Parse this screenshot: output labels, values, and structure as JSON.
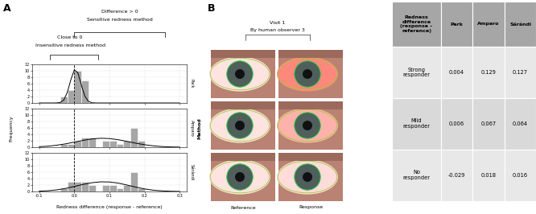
{
  "panel_labels": [
    "A",
    "B"
  ],
  "panel_a": {
    "y_label": "Frequency",
    "x_label": "Redness difference (response - reference)",
    "facet_title": "Method",
    "brackets": [
      {
        "label": "Difference > 0",
        "sublabel": "Sensitive redness method"
      },
      {
        "label": "Close to 0",
        "sublabel": "Insensitive redness method"
      }
    ]
  },
  "chart_data": [
    {
      "type": "histogram",
      "title": "Park",
      "color": "#a6a6a6",
      "grid": true,
      "tick_labels": "y",
      "bins": [
        -0.04,
        -0.02,
        0.0,
        0.02,
        0.04
      ],
      "counts": [
        2,
        4,
        10,
        7
      ],
      "fit_curve": {
        "x": [
          -0.1,
          -0.08,
          -0.06,
          -0.05,
          -0.04,
          -0.03,
          -0.02,
          -0.01,
          0.0,
          0.01,
          0.02,
          0.03,
          0.04,
          0.05,
          0.06,
          0.08,
          0.1,
          0.2,
          0.3
        ],
        "values": [
          0,
          0,
          0,
          0.02,
          0.17,
          0.93,
          3.3,
          7.2,
          10.3,
          9.4,
          5.6,
          2.1,
          0.5,
          0.08,
          0,
          0,
          0,
          0,
          0
        ]
      },
      "reference_line": 0.0,
      "xlim": [
        -0.12,
        0.32
      ],
      "xticks": [
        -0.1,
        0.0,
        0.1,
        0.2,
        0.3
      ],
      "ylim": [
        0,
        12
      ],
      "yticks": [
        0,
        2,
        4,
        6,
        8,
        10,
        12
      ]
    },
    {
      "type": "histogram",
      "title": "Amparo",
      "color": "#a6a6a6",
      "grid": true,
      "tick_labels": "y",
      "bins": [
        -0.04,
        -0.02,
        0.0,
        0.02,
        0.04,
        0.06,
        0.08,
        0.1,
        0.12,
        0.14,
        0.16,
        0.18,
        0.2
      ],
      "counts": [
        1,
        1,
        2,
        3,
        3,
        0,
        2,
        2,
        1,
        2,
        6,
        2
      ],
      "fit_curve": {
        "x": [
          -0.1,
          -0.075,
          -0.05,
          -0.025,
          0.0,
          0.025,
          0.05,
          0.075,
          0.1,
          0.125,
          0.15,
          0.175,
          0.2,
          0.225,
          0.25,
          0.275,
          0.3
        ],
        "values": [
          0.16,
          0.33,
          0.63,
          1.05,
          1.58,
          2.14,
          2.58,
          2.79,
          2.7,
          2.34,
          1.81,
          1.25,
          0.78,
          0.43,
          0.21,
          0.09,
          0.04
        ]
      },
      "reference_line": 0.0,
      "xlim": [
        -0.12,
        0.32
      ],
      "xticks": [
        -0.1,
        0.0,
        0.1,
        0.2,
        0.3
      ],
      "ylim": [
        0,
        12
      ],
      "yticks": [
        0,
        2,
        4,
        6,
        8,
        10,
        12
      ]
    },
    {
      "type": "histogram",
      "title": "Sárándi",
      "color": "#a6a6a6",
      "grid": true,
      "bins": [
        -0.04,
        -0.02,
        0.0,
        0.02,
        0.04,
        0.06,
        0.08,
        0.1,
        0.12,
        0.14,
        0.16,
        0.18,
        0.2
      ],
      "counts": [
        1,
        3,
        3,
        3,
        2,
        0,
        2,
        2,
        1,
        2,
        6,
        1
      ],
      "fit_curve": {
        "x": [
          -0.1,
          -0.075,
          -0.05,
          -0.025,
          0.0,
          0.025,
          0.05,
          0.075,
          0.1,
          0.125,
          0.15,
          0.175,
          0.2,
          0.225,
          0.25,
          0.275,
          0.3
        ],
        "values": [
          0.1,
          0.22,
          0.5,
          0.95,
          1.55,
          2.2,
          2.72,
          3.0,
          2.95,
          2.6,
          2.0,
          1.35,
          0.8,
          0.4,
          0.18,
          0.07,
          0.02
        ]
      },
      "reference_line": 0.0,
      "xlim": [
        -0.12,
        0.32
      ],
      "xticks": [
        -0.1,
        0.0,
        0.1,
        0.2,
        0.3
      ],
      "ylim": [
        0,
        12
      ],
      "yticks": [
        0,
        2,
        4,
        6,
        8,
        10,
        12
      ]
    }
  ],
  "panel_b": {
    "images": {
      "title": "Visit 1",
      "subtitle": "By human observer 3",
      "columns": [
        "Reference",
        "Response"
      ]
    },
    "table": {
      "header": [
        "Redness difference (response – reference)",
        "Park",
        "Amparo",
        "Sárándi"
      ],
      "rows": [
        [
          "Strong responder",
          0.004,
          0.129,
          0.127
        ],
        [
          "Mild responder",
          0.006,
          0.067,
          0.064
        ],
        [
          "No responder",
          -0.029,
          0.018,
          0.016
        ]
      ]
    }
  }
}
